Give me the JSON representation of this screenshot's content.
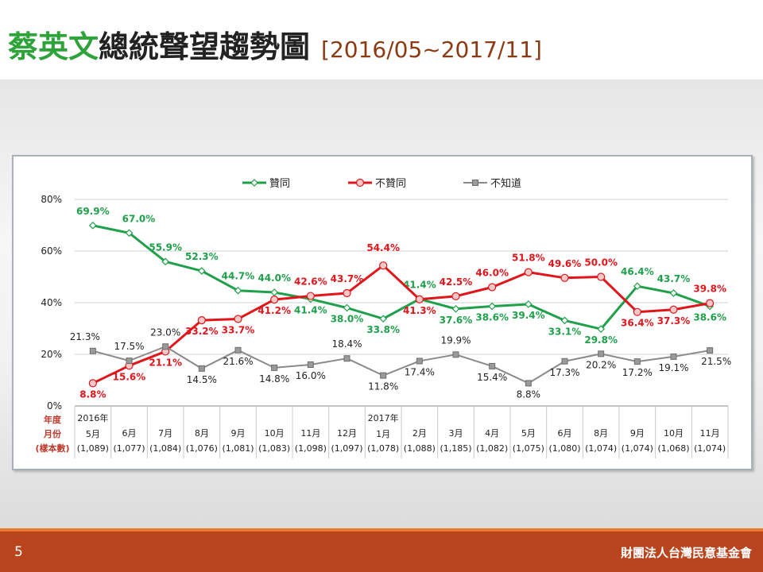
{
  "slide": {
    "title_name": "蔡英文",
    "title_rest": "總統聲望趨勢圖",
    "title_range": "[2016/05~2017/11]",
    "page_number": "5",
    "organization": "財團法人台灣民意基金會"
  },
  "colors": {
    "approve": "#1fa04a",
    "disapprove": "#e0161b",
    "unknown": "#8a8a8a",
    "title_green": "#2ea33a",
    "footer": "#b9441e"
  },
  "chart_data": {
    "type": "line",
    "ylim": [
      0,
      80
    ],
    "yticks": [
      "0%",
      "20%",
      "40%",
      "60%",
      "80%"
    ],
    "grid": true,
    "legend_position": "top",
    "row_headers": [
      "年度",
      "月份",
      "(樣本數)"
    ],
    "categories": [
      {
        "year": "2016年",
        "month": "5月",
        "sample": "(1,089)"
      },
      {
        "year": "",
        "month": "6月",
        "sample": "(1,077)"
      },
      {
        "year": "",
        "month": "7月",
        "sample": "(1,084)"
      },
      {
        "year": "",
        "month": "8月",
        "sample": "(1,076)"
      },
      {
        "year": "",
        "month": "9月",
        "sample": "(1,081)"
      },
      {
        "year": "",
        "month": "10月",
        "sample": "(1,083)"
      },
      {
        "year": "",
        "month": "11月",
        "sample": "(1,098)"
      },
      {
        "year": "",
        "month": "12月",
        "sample": "(1,097)"
      },
      {
        "year": "2017年",
        "month": "1月",
        "sample": "(1,078)"
      },
      {
        "year": "",
        "month": "2月",
        "sample": "(1,088)"
      },
      {
        "year": "",
        "month": "3月",
        "sample": "(1,185)"
      },
      {
        "year": "",
        "month": "4月",
        "sample": "(1,082)"
      },
      {
        "year": "",
        "month": "5月",
        "sample": "(1,075)"
      },
      {
        "year": "",
        "month": "6月",
        "sample": "(1,080)"
      },
      {
        "year": "",
        "month": "8月",
        "sample": "(1,074)"
      },
      {
        "year": "",
        "month": "9月",
        "sample": "(1,074)"
      },
      {
        "year": "",
        "month": "10月",
        "sample": "(1,068)"
      },
      {
        "year": "",
        "month": "11月",
        "sample": "(1,074)"
      }
    ],
    "series": [
      {
        "name": "贊同",
        "key": "approve",
        "values": [
          69.9,
          67.0,
          55.9,
          52.3,
          44.7,
          44.0,
          41.4,
          38.0,
          33.8,
          41.4,
          37.6,
          38.6,
          39.4,
          33.1,
          29.8,
          46.4,
          43.7,
          38.6
        ],
        "labels": [
          "69.9%",
          "67.0%",
          "55.9%",
          "52.3%",
          "44.7%",
          "44.0%",
          "41.4%",
          "38.0%",
          "33.8%",
          "41.4%",
          "37.6%",
          "38.6%",
          "39.4%",
          "33.1%",
          "29.8%",
          "46.4%",
          "43.7%",
          "38.6%"
        ]
      },
      {
        "name": "不贊同",
        "key": "disapprove",
        "values": [
          8.8,
          15.6,
          21.1,
          33.2,
          33.7,
          41.2,
          42.6,
          43.7,
          54.4,
          41.3,
          42.5,
          46.0,
          51.8,
          49.6,
          50.0,
          36.4,
          37.3,
          39.8
        ],
        "labels": [
          "8.8%",
          "15.6%",
          "21.1%",
          "33.2%",
          "33.7%",
          "41.2%",
          "42.6%",
          "43.7%",
          "54.4%",
          "41.3%",
          "42.5%",
          "46.0%",
          "51.8%",
          "49.6%",
          "50.0%",
          "36.4%",
          "37.3%",
          "39.8%"
        ]
      },
      {
        "name": "不知道",
        "key": "unknown",
        "values": [
          21.3,
          17.5,
          23.0,
          14.5,
          21.6,
          14.8,
          16.0,
          18.4,
          11.8,
          17.4,
          19.9,
          15.4,
          8.8,
          17.3,
          20.2,
          17.2,
          19.1,
          21.5
        ],
        "labels": [
          "21.3%",
          "17.5%",
          "23.0%",
          "14.5%",
          "21.6%",
          "14.8%",
          "16.0%",
          "18.4%",
          "11.8%",
          "17.4%",
          "19.9%",
          "15.4%",
          "8.8%",
          "17.3%",
          "20.2%",
          "17.2%",
          "19.1%",
          "21.5%"
        ]
      }
    ]
  }
}
